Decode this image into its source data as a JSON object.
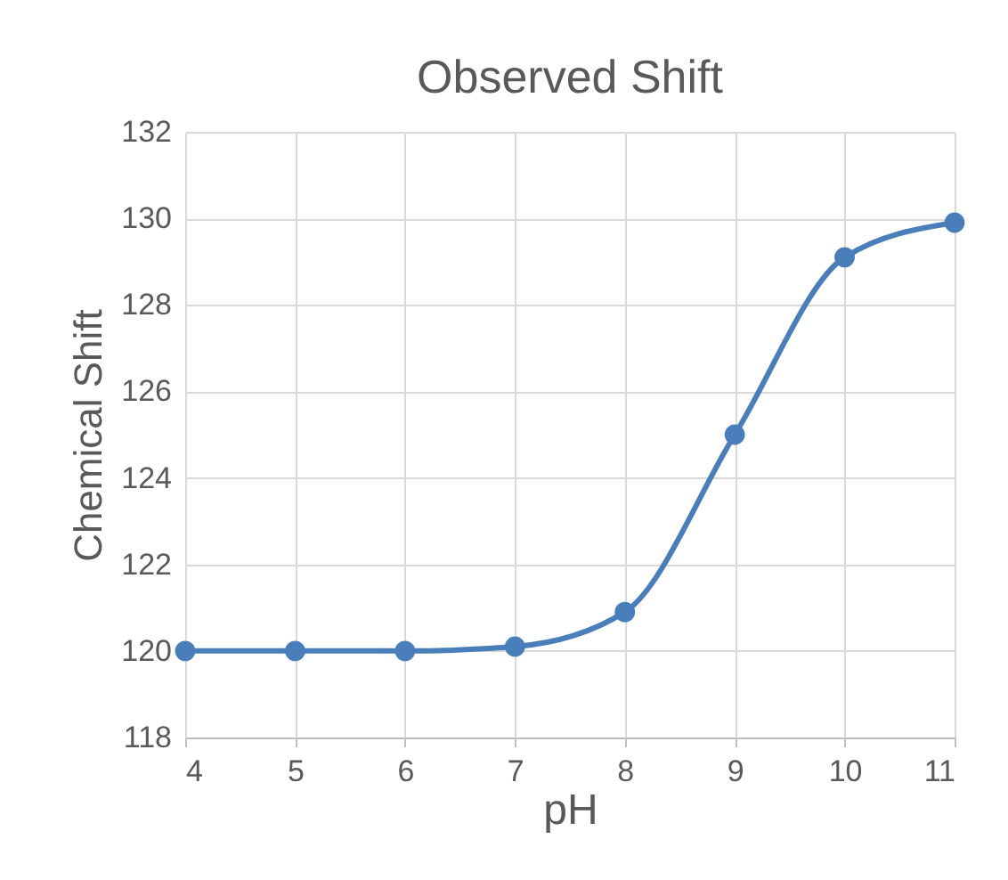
{
  "chart_data": {
    "type": "line",
    "title": "Observed Shift",
    "xlabel": "pH",
    "ylabel": "Chemical Shift",
    "x": [
      4,
      5,
      6,
      7,
      8,
      9,
      10,
      11
    ],
    "series": [
      {
        "color": "#4a7ebb",
        "values": [
          120,
          120,
          120,
          120.1,
          120.9,
          125,
          129.1,
          129.9
        ]
      }
    ],
    "xlim": [
      4,
      11
    ],
    "xticks": [
      4,
      5,
      6,
      7,
      8,
      9,
      10,
      11
    ],
    "ylim": [
      118,
      132
    ],
    "yticks": [
      118,
      120,
      122,
      124,
      126,
      128,
      130,
      132
    ],
    "grid": true,
    "legend": false,
    "marker": "circle",
    "line_style": "solid"
  }
}
